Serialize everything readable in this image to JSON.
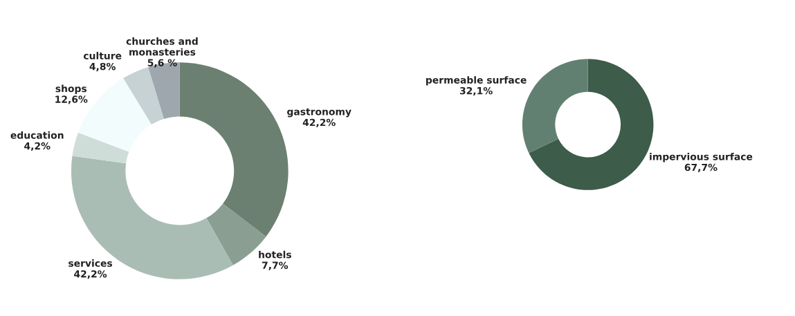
{
  "chart_data": [
    {
      "type": "donut",
      "categories": [
        "gastronomy",
        "hotels",
        "services",
        "education",
        "shops",
        "culture",
        "churches and\nmonasteries"
      ],
      "values": [
        42.2,
        7.7,
        42.2,
        4.2,
        12.6,
        4.8,
        5.6
      ],
      "value_labels": [
        "42,2%",
        "7,7%",
        "42,2%",
        "4,2%",
        "12,6%",
        "4,8%",
        "5,6 %"
      ],
      "colors": [
        "#6b8070",
        "#8b9e92",
        "#aabdb5",
        "#cfddd8",
        "#f3fcfc",
        "#c6d2d4",
        "#9ea7ae"
      ]
    },
    {
      "type": "donut",
      "categories": [
        "impervious surface",
        "permeable surface"
      ],
      "values": [
        67.7,
        32.1
      ],
      "value_labels": [
        "67,7%",
        "32,1%"
      ],
      "colors": [
        "#3d5c4a",
        "#628071"
      ]
    }
  ]
}
